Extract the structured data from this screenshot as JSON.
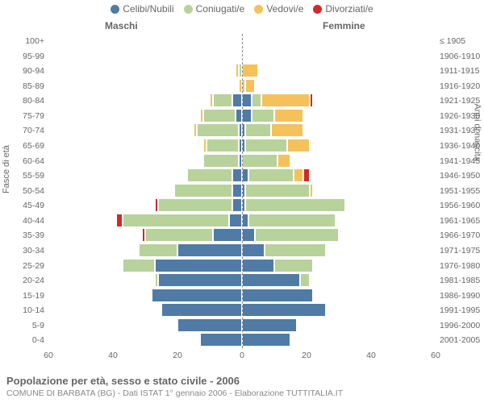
{
  "chart": {
    "type": "population-pyramid",
    "background_color": "#ffffff",
    "text_color": "#666666",
    "legend_fontsize": 12,
    "label_fontsize": 10.5,
    "centerline_color": "#888888",
    "axis_text_color": "#666666",
    "segment_border": "#ffffff",
    "categories": [
      {
        "key": "celibi",
        "label": "Celibi/Nubili",
        "color": "#4f7ba6"
      },
      {
        "key": "coniugati",
        "label": "Coniugati/e",
        "color": "#b8d29b"
      },
      {
        "key": "vedovi",
        "label": "Vedovi/e",
        "color": "#f5c15b"
      },
      {
        "key": "divorziati",
        "label": "Divorziati/e",
        "color": "#cf2a27"
      }
    ],
    "headers": {
      "left": "Maschi",
      "right": "Femmine"
    },
    "ylabel_left": "Fasce di età",
    "ylabel_right": "Anni di nascita",
    "xaxis": {
      "min": -60,
      "max": 60,
      "ticks": [
        60,
        40,
        20,
        0,
        20,
        40,
        60
      ],
      "positions": [
        -60,
        -40,
        -20,
        0,
        20,
        40,
        60
      ]
    },
    "rows": [
      {
        "age": "0-4",
        "birth": "2001-2005",
        "m": {
          "celibi": 13,
          "coniugati": 0,
          "vedovi": 0,
          "divorziati": 0
        },
        "f": {
          "celibi": 15,
          "coniugati": 0,
          "vedovi": 0,
          "divorziati": 0
        }
      },
      {
        "age": "5-9",
        "birth": "1996-2000",
        "m": {
          "celibi": 20,
          "coniugati": 0,
          "vedovi": 0,
          "divorziati": 0
        },
        "f": {
          "celibi": 17,
          "coniugati": 0,
          "vedovi": 0,
          "divorziati": 0
        }
      },
      {
        "age": "10-14",
        "birth": "1991-1995",
        "m": {
          "celibi": 25,
          "coniugati": 0,
          "vedovi": 0,
          "divorziati": 0
        },
        "f": {
          "celibi": 26,
          "coniugati": 0,
          "vedovi": 0,
          "divorziati": 0
        }
      },
      {
        "age": "15-19",
        "birth": "1986-1990",
        "m": {
          "celibi": 28,
          "coniugati": 0,
          "vedovi": 0,
          "divorziati": 0
        },
        "f": {
          "celibi": 22,
          "coniugati": 0,
          "vedovi": 0,
          "divorziati": 0
        }
      },
      {
        "age": "20-24",
        "birth": "1981-1985",
        "m": {
          "celibi": 26,
          "coniugati": 1,
          "vedovi": 0,
          "divorziati": 0
        },
        "f": {
          "celibi": 18,
          "coniugati": 3,
          "vedovi": 0,
          "divorziati": 0
        }
      },
      {
        "age": "25-29",
        "birth": "1976-1980",
        "m": {
          "celibi": 27,
          "coniugati": 10,
          "vedovi": 0,
          "divorziati": 0
        },
        "f": {
          "celibi": 10,
          "coniugati": 12,
          "vedovi": 0,
          "divorziati": 0
        }
      },
      {
        "age": "30-34",
        "birth": "1971-1975",
        "m": {
          "celibi": 20,
          "coniugati": 12,
          "vedovi": 0,
          "divorziati": 0
        },
        "f": {
          "celibi": 7,
          "coniugati": 19,
          "vedovi": 0,
          "divorziati": 0
        }
      },
      {
        "age": "35-39",
        "birth": "1966-1970",
        "m": {
          "celibi": 9,
          "coniugati": 21,
          "vedovi": 0,
          "divorziati": 1
        },
        "f": {
          "celibi": 4,
          "coniugati": 26,
          "vedovi": 0,
          "divorziati": 0
        }
      },
      {
        "age": "40-44",
        "birth": "1961-1965",
        "m": {
          "celibi": 4,
          "coniugati": 33,
          "vedovi": 0,
          "divorziati": 2
        },
        "f": {
          "celibi": 2,
          "coniugati": 27,
          "vedovi": 0,
          "divorziati": 0
        }
      },
      {
        "age": "45-49",
        "birth": "1956-1960",
        "m": {
          "celibi": 3,
          "coniugati": 23,
          "vedovi": 0,
          "divorziati": 1
        },
        "f": {
          "celibi": 1,
          "coniugati": 31,
          "vedovi": 0,
          "divorziati": 0
        }
      },
      {
        "age": "50-54",
        "birth": "1951-1955",
        "m": {
          "celibi": 3,
          "coniugati": 18,
          "vedovi": 0,
          "divorziati": 0
        },
        "f": {
          "celibi": 1,
          "coniugati": 20,
          "vedovi": 1,
          "divorziati": 0
        }
      },
      {
        "age": "55-59",
        "birth": "1946-1950",
        "m": {
          "celibi": 3,
          "coniugati": 14,
          "vedovi": 0,
          "divorziati": 0
        },
        "f": {
          "celibi": 2,
          "coniugati": 14,
          "vedovi": 3,
          "divorziati": 2
        }
      },
      {
        "age": "60-64",
        "birth": "1941-1945",
        "m": {
          "celibi": 1,
          "coniugati": 11,
          "vedovi": 0,
          "divorziati": 0
        },
        "f": {
          "celibi": 0,
          "coniugati": 11,
          "vedovi": 4,
          "divorziati": 0
        }
      },
      {
        "age": "65-69",
        "birth": "1936-1940",
        "m": {
          "celibi": 1,
          "coniugati": 10,
          "vedovi": 1,
          "divorziati": 0
        },
        "f": {
          "celibi": 1,
          "coniugati": 13,
          "vedovi": 7,
          "divorziati": 0
        }
      },
      {
        "age": "70-74",
        "birth": "1931-1935",
        "m": {
          "celibi": 1,
          "coniugati": 13,
          "vedovi": 1,
          "divorziati": 0
        },
        "f": {
          "celibi": 1,
          "coniugati": 8,
          "vedovi": 10,
          "divorziati": 0
        }
      },
      {
        "age": "75-79",
        "birth": "1926-1930",
        "m": {
          "celibi": 2,
          "coniugati": 10,
          "vedovi": 1,
          "divorziati": 0
        },
        "f": {
          "celibi": 3,
          "coniugati": 7,
          "vedovi": 9,
          "divorziati": 0
        }
      },
      {
        "age": "80-84",
        "birth": "1921-1925",
        "m": {
          "celibi": 3,
          "coniugati": 6,
          "vedovi": 1,
          "divorziati": 0
        },
        "f": {
          "celibi": 3,
          "coniugati": 3,
          "vedovi": 15,
          "divorziati": 1
        }
      },
      {
        "age": "85-89",
        "birth": "1916-1920",
        "m": {
          "celibi": 0,
          "coniugati": 0,
          "vedovi": 1,
          "divorziati": 0
        },
        "f": {
          "celibi": 0,
          "coniugati": 1,
          "vedovi": 3,
          "divorziati": 0
        }
      },
      {
        "age": "90-94",
        "birth": "1911-1915",
        "m": {
          "celibi": 0,
          "coniugati": 1,
          "vedovi": 1,
          "divorziati": 0
        },
        "f": {
          "celibi": 0,
          "coniugati": 0,
          "vedovi": 5,
          "divorziati": 0
        }
      },
      {
        "age": "95-99",
        "birth": "1906-1910",
        "m": {
          "celibi": 0,
          "coniugati": 0,
          "vedovi": 0,
          "divorziati": 0
        },
        "f": {
          "celibi": 0,
          "coniugati": 0,
          "vedovi": 0,
          "divorziati": 0
        }
      },
      {
        "age": "100+",
        "birth": "≤ 1905",
        "m": {
          "celibi": 0,
          "coniugati": 0,
          "vedovi": 0,
          "divorziati": 0
        },
        "f": {
          "celibi": 0,
          "coniugati": 0,
          "vedovi": 0,
          "divorziati": 0
        }
      }
    ]
  },
  "footer": {
    "title": "Popolazione per età, sesso e stato civile - 2006",
    "subtitle": "COMUNE DI BARBATA (BG) - Dati ISTAT 1° gennaio 2006 - Elaborazione TUTTITALIA.IT"
  }
}
